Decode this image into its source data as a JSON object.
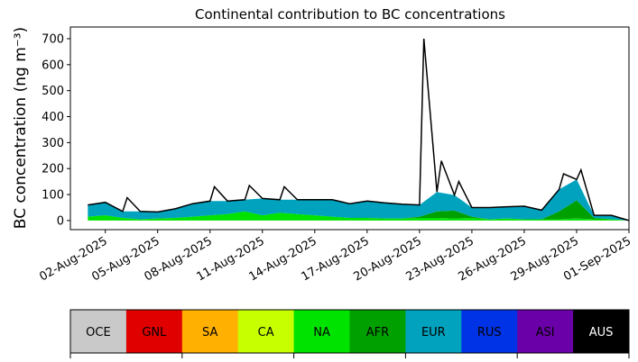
{
  "chart_data": {
    "type": "area",
    "title": "Continental contribution to BC concentrations",
    "ylabel": "BC concentration (ng m⁻³)",
    "xlabel": "",
    "x_range": [
      "2025-07-31",
      "2025-09-01"
    ],
    "ylim": [
      -35,
      745
    ],
    "y_ticks": [
      0,
      100,
      200,
      300,
      400,
      500,
      600,
      700
    ],
    "x_ticks": [
      "02-Aug-2025",
      "05-Aug-2025",
      "08-Aug-2025",
      "11-Aug-2025",
      "14-Aug-2025",
      "17-Aug-2025",
      "20-Aug-2025",
      "23-Aug-2025",
      "26-Aug-2025",
      "29-Aug-2025",
      "01-Sep-2025"
    ],
    "grid": false,
    "x": [
      "2025-08-01",
      "2025-08-02",
      "2025-08-03",
      "2025-08-04",
      "2025-08-05",
      "2025-08-06",
      "2025-08-07",
      "2025-08-08",
      "2025-08-09",
      "2025-08-10",
      "2025-08-11",
      "2025-08-12",
      "2025-08-13",
      "2025-08-14",
      "2025-08-15",
      "2025-08-16",
      "2025-08-17",
      "2025-08-18",
      "2025-08-19",
      "2025-08-20",
      "2025-08-21",
      "2025-08-22",
      "2025-08-23",
      "2025-08-24",
      "2025-08-25",
      "2025-08-26",
      "2025-08-27",
      "2025-08-28",
      "2025-08-29",
      "2025-08-30",
      "2025-08-31",
      "2025-09-01"
    ],
    "series": [
      {
        "name": "NA",
        "values": [
          15,
          20,
          10,
          5,
          8,
          10,
          15,
          20,
          25,
          35,
          20,
          30,
          25,
          20,
          15,
          10,
          10,
          8,
          8,
          10,
          10,
          8,
          10,
          5,
          8,
          5,
          5,
          5,
          8,
          5,
          5,
          0
        ]
      },
      {
        "name": "AFR",
        "values": [
          0,
          0,
          0,
          0,
          0,
          0,
          0,
          0,
          0,
          0,
          0,
          0,
          0,
          0,
          0,
          0,
          0,
          0,
          0,
          5,
          25,
          30,
          5,
          0,
          0,
          0,
          0,
          30,
          70,
          5,
          0,
          0
        ]
      },
      {
        "name": "EUR",
        "values": [
          45,
          50,
          25,
          30,
          25,
          35,
          50,
          55,
          50,
          45,
          65,
          50,
          55,
          60,
          65,
          55,
          65,
          60,
          55,
          45,
          75,
          60,
          35,
          45,
          45,
          50,
          35,
          85,
          80,
          10,
          15,
          0
        ]
      }
    ],
    "total": [
      60,
      70,
      35,
      35,
      33,
      45,
      65,
      75,
      75,
      80,
      85,
      80,
      80,
      80,
      80,
      65,
      75,
      68,
      63,
      60,
      110,
      98,
      50,
      50,
      53,
      55,
      40,
      120,
      158,
      20,
      20,
      0
    ],
    "total_peaks": [
      {
        "x": "2025-08-03",
        "value": 88
      },
      {
        "x": "2025-08-08",
        "value": 130
      },
      {
        "x": "2025-08-10",
        "value": 135
      },
      {
        "x": "2025-08-12",
        "value": 130
      },
      {
        "x": "2025-08-20",
        "value": 700
      },
      {
        "x": "2025-08-21",
        "value": 230
      },
      {
        "x": "2025-08-22",
        "value": 150
      },
      {
        "x": "2025-08-28",
        "value": 180
      },
      {
        "x": "2025-08-29",
        "value": 195
      }
    ],
    "colors": {
      "NA": "#00e200",
      "AFR": "#00a000",
      "EUR": "#00a2bd",
      "total_line": "#000000"
    }
  },
  "legend_bar": {
    "items": [
      {
        "label": "OCE",
        "color": "#c9c9c9",
        "text_color": "#000000"
      },
      {
        "label": "GNL",
        "color": "#e00000",
        "text_color": "#000000"
      },
      {
        "label": "SA",
        "color": "#ffb000",
        "text_color": "#000000"
      },
      {
        "label": "CA",
        "color": "#c8ff00",
        "text_color": "#000000"
      },
      {
        "label": "NA",
        "color": "#00e200",
        "text_color": "#000000"
      },
      {
        "label": "AFR",
        "color": "#00a000",
        "text_color": "#000000"
      },
      {
        "label": "EUR",
        "color": "#00a2bd",
        "text_color": "#000000"
      },
      {
        "label": "RUS",
        "color": "#0032e6",
        "text_color": "#000000"
      },
      {
        "label": "ASI",
        "color": "#6a00a8",
        "text_color": "#000000"
      },
      {
        "label": "AUS",
        "color": "#000000",
        "text_color": "#ffffff"
      }
    ]
  }
}
